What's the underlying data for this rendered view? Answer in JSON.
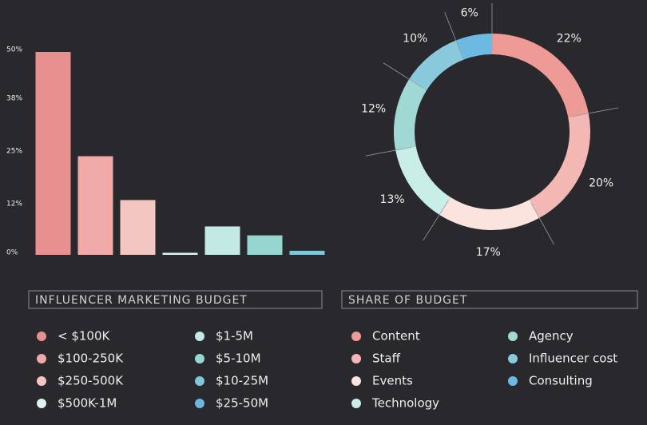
{
  "chart_data": [
    {
      "type": "bar",
      "title": "INFLUENCER MARKETING BUDGET",
      "categories": [
        "< $100K",
        "$100-250K",
        "$250-500K",
        "$500K-1M",
        "$1-5M",
        "$5-10M",
        "$10-25M",
        "$25-50M"
      ],
      "values": [
        50,
        24.3,
        13.5,
        0.5,
        7,
        4.8,
        1,
        0
      ],
      "colors": [
        "#e8908f",
        "#f0aba8",
        "#f4c6c1",
        "#dff3ef",
        "#c2e9e3",
        "#97d5d1",
        "#80c6d8",
        "#6db4de"
      ],
      "ylim": [
        0,
        50
      ],
      "yticks": [
        {
          "value": 0,
          "label": "0%"
        },
        {
          "value": 12,
          "label": "12%"
        },
        {
          "value": 25,
          "label": "25%"
        },
        {
          "value": 38,
          "label": "38%"
        },
        {
          "value": 50,
          "label": "50%"
        }
      ]
    },
    {
      "type": "pie",
      "title": "SHARE OF BUDGET",
      "categories": [
        "Content",
        "Staff",
        "Events",
        "Technology",
        "Agency",
        "Influencer cost",
        "Consulting"
      ],
      "values": [
        22,
        20,
        17,
        13,
        12,
        10,
        6
      ],
      "value_labels": [
        "22%",
        "20%",
        "17%",
        "13%",
        "12%",
        "10%",
        "6%"
      ],
      "colors": [
        "#ee9a97",
        "#f4b8b4",
        "#fbe4de",
        "#c9ede7",
        "#a0d9d4",
        "#88cadc",
        "#6cb9e1"
      ]
    }
  ]
}
